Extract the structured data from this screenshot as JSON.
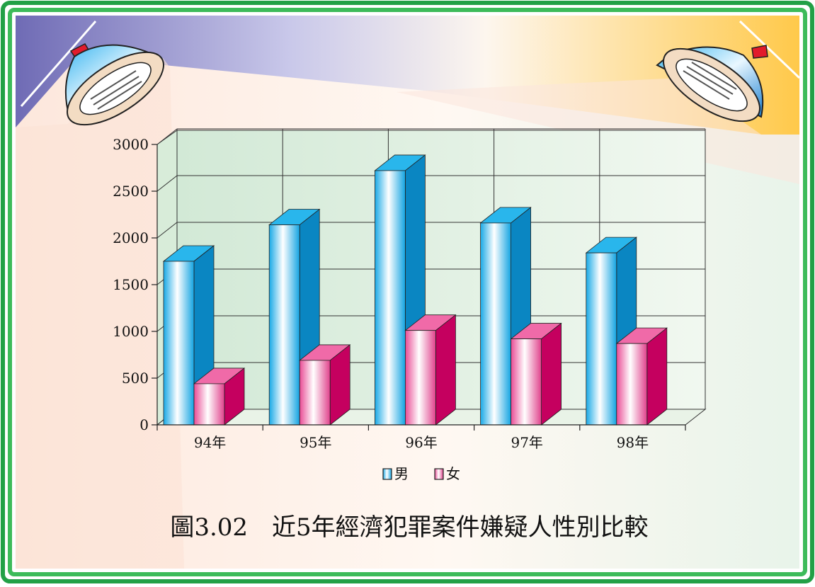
{
  "chart_data": {
    "type": "bar",
    "categories": [
      "94年",
      "95年",
      "96年",
      "97年",
      "98年"
    ],
    "series": [
      {
        "name": "男",
        "values": [
          1750,
          2140,
          2720,
          2160,
          1840
        ]
      },
      {
        "name": "女",
        "values": [
          440,
          690,
          1010,
          920,
          870
        ]
      }
    ],
    "ylim": [
      0,
      3000
    ],
    "yticks": [
      "0",
      "500",
      "1000",
      "1500",
      "2000",
      "2500",
      "3000"
    ],
    "grid": true,
    "legend_position": "bottom-center",
    "caption": "圖3.02　近5年經濟犯罪案件嫌疑人性別比較"
  },
  "colors": {
    "frame_green": "#1f9a3c",
    "male_front": "#29b6ec",
    "male_side": "#0a86c2",
    "female_front": "#f06aa8",
    "female_side": "#c5005f",
    "plot_bg": "#e4f1e4"
  },
  "decor": {
    "left_lamp": "spotlight-icon",
    "right_lamp": "spotlight-icon"
  }
}
